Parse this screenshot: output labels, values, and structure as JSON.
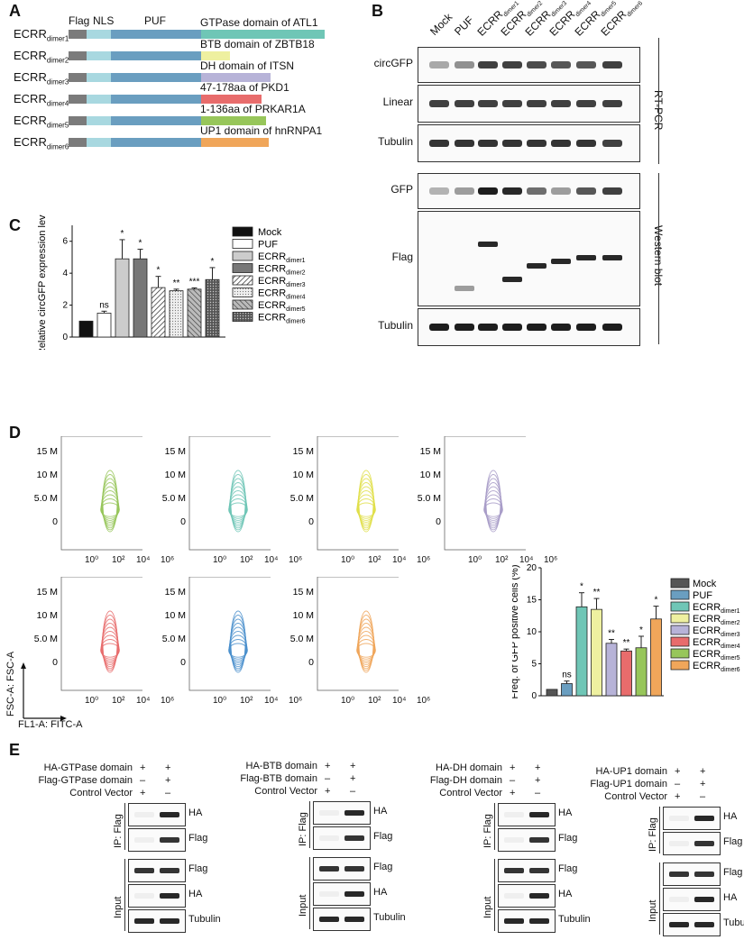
{
  "panels": {
    "A": "A",
    "B": "B",
    "C": "C",
    "D": "D",
    "E": "E"
  },
  "panelA": {
    "header": {
      "flag": "Flag",
      "nls": "NLS",
      "puf": "PUF"
    },
    "constructs": [
      {
        "base": "ECRR",
        "sub": "dimer1",
        "domain": "GTPase domain of ATL1",
        "color": "#6fc6b6"
      },
      {
        "base": "ECRR",
        "sub": "dimer2",
        "domain": "BTB domain of ZBTB18",
        "color": "#eef0a0"
      },
      {
        "base": "ECRR",
        "sub": "dimer3",
        "domain": "DH domain of ITSN",
        "color": "#b7b3d8"
      },
      {
        "base": "ECRR",
        "sub": "dimer4",
        "domain": "47-178aa of PKD1",
        "color": "#e86c6c"
      },
      {
        "base": "ECRR",
        "sub": "dimer5",
        "domain": "1-136aa of PRKAR1A",
        "color": "#97c65a"
      },
      {
        "base": "ECRR",
        "sub": "dimer6",
        "domain": "UP1 domain of hnRNPA1",
        "color": "#f0a65a"
      }
    ],
    "colors": {
      "flag": "#7b7b7b",
      "nls": "#a8d8e0",
      "puf": "#6a9ec0"
    }
  },
  "panelB": {
    "lanes": [
      {
        "base": "Mock",
        "sub": ""
      },
      {
        "base": "PUF",
        "sub": ""
      },
      {
        "base": "ECRR",
        "sub": "dimer1"
      },
      {
        "base": "ECRR",
        "sub": "dimer2"
      },
      {
        "base": "ECRR",
        "sub": "dimer3"
      },
      {
        "base": "ECRR",
        "sub": "dimer4"
      },
      {
        "base": "ECRR",
        "sub": "dimer5"
      },
      {
        "base": "ECRR",
        "sub": "dimer6"
      }
    ],
    "rows": {
      "circgfp": "circGFP",
      "linear": "Linear",
      "tubulin1": "Tubulin",
      "gfp": "GFP",
      "flag": "Flag",
      "tubulin2": "Tubulin"
    },
    "side": {
      "rtpcr": "RT-PCR",
      "western": "Western blot"
    }
  },
  "chart_data": [
    {
      "type": "bar",
      "panel": "C",
      "ylabel": "Relative circGFP expression level",
      "ylim": [
        0,
        7
      ],
      "yticks": [
        "0",
        "2",
        "4",
        "6"
      ],
      "categories": [
        "Mock",
        "PUF",
        "ECRR dimer1",
        "ECRR dimer2",
        "ECRR dimer3",
        "ECRR dimer4",
        "ECRR dimer5",
        "ECRR dimer6"
      ],
      "values": [
        1.0,
        1.5,
        4.9,
        4.9,
        3.1,
        2.9,
        3.0,
        3.6
      ],
      "errors": [
        0,
        0.12,
        1.2,
        0.6,
        0.7,
        0.1,
        0.08,
        0.75
      ],
      "significance": [
        "",
        "ns",
        "*",
        "*",
        "*",
        "**",
        "***",
        "*"
      ],
      "legend": [
        {
          "base": "Mock",
          "sub": ""
        },
        {
          "base": "PUF",
          "sub": ""
        },
        {
          "base": "ECRR",
          "sub": "dimer1"
        },
        {
          "base": "ECRR",
          "sub": "dimer2"
        },
        {
          "base": "ECRR",
          "sub": "dimer3"
        },
        {
          "base": "ECRR",
          "sub": "dimer4"
        },
        {
          "base": "ECRR",
          "sub": "dimer5"
        },
        {
          "base": "ECRR",
          "sub": "dimer6"
        }
      ],
      "legend_position": "right"
    },
    {
      "type": "bar",
      "panel": "D",
      "ylabel": "Freq. of GFP positive cells (%)",
      "ylim": [
        0,
        20
      ],
      "yticks": [
        "0",
        "5",
        "10",
        "15",
        "20"
      ],
      "categories": [
        "Mock",
        "PUF",
        "ECRR dimer1",
        "ECRR dimer2",
        "ECRR dimer3",
        "ECRR dimer4",
        "ECRR dimer5",
        "ECRR dimer6"
      ],
      "values": [
        1.0,
        1.9,
        13.9,
        13.5,
        8.2,
        7.0,
        7.5,
        12.0
      ],
      "errors": [
        0,
        0.4,
        2.2,
        1.7,
        0.6,
        0.3,
        1.8,
        2.0
      ],
      "significance": [
        "",
        "ns",
        "*",
        "**",
        "**",
        "**",
        "*",
        "*"
      ],
      "colors": [
        "#555555",
        "#6a9ec0",
        "#6fc6b6",
        "#eef0a0",
        "#b7b3d8",
        "#e86c6c",
        "#97c65a",
        "#f0a65a"
      ],
      "legend": [
        {
          "base": "Mock",
          "sub": ""
        },
        {
          "base": "PUF",
          "sub": ""
        },
        {
          "base": "ECRR",
          "sub": "dimer1"
        },
        {
          "base": "ECRR",
          "sub": "dimer2"
        },
        {
          "base": "ECRR",
          "sub": "dimer3"
        },
        {
          "base": "ECRR",
          "sub": "dimer4"
        },
        {
          "base": "ECRR",
          "sub": "dimer5"
        },
        {
          "base": "ECRR",
          "sub": "dimer6"
        }
      ],
      "legend_position": "right"
    }
  ],
  "flow": {
    "yticks": [
      "15 M",
      "10 M",
      "5.0 M",
      "0"
    ],
    "xticks": [
      "10⁰",
      "10²",
      "10⁴",
      "10⁶"
    ],
    "ylabel": "FSC-A: FSC-A",
    "xlabel": "FL1-A: FITC-A",
    "plots": [
      {
        "color": "#97c65a"
      },
      {
        "color": "#6fc6b6"
      },
      {
        "color": "#e0df4a"
      },
      {
        "color": "#a89cc8"
      },
      {
        "color": "#e86c6c"
      },
      {
        "color": "#4a8fcc"
      },
      {
        "color": "#f0a65a"
      }
    ]
  },
  "panelE": [
    {
      "rows": [
        "HA-GTPase domain",
        "Flag-GTPase domain",
        "Control Vector"
      ],
      "signs": [
        [
          "+",
          "+"
        ],
        [
          "–",
          "+"
        ],
        [
          "+",
          "–"
        ]
      ],
      "ip": "IP: Flag",
      "input": "Input",
      "labels": [
        "HA",
        "Flag",
        "Flag",
        "HA",
        "Tubulin"
      ]
    },
    {
      "rows": [
        "HA-BTB domain",
        "Flag-BTB domain",
        "Control Vector"
      ],
      "signs": [
        [
          "+",
          "+"
        ],
        [
          "–",
          "+"
        ],
        [
          "+",
          "–"
        ]
      ],
      "ip": "IP: Flag",
      "input": "Input",
      "labels": [
        "HA",
        "Flag",
        "Flag",
        "HA",
        "Tubulin"
      ]
    },
    {
      "rows": [
        "HA-DH domain",
        "Flag-DH domain",
        "Control Vector"
      ],
      "signs": [
        [
          "+",
          "+"
        ],
        [
          "–",
          "+"
        ],
        [
          "+",
          "–"
        ]
      ],
      "ip": "IP: Flag",
      "input": "Input",
      "labels": [
        "HA",
        "Flag",
        "Flag",
        "HA",
        "Tubulin"
      ]
    },
    {
      "rows": [
        "HA-UP1 domain",
        "Flag-UP1 domain",
        "Control Vector"
      ],
      "signs": [
        [
          "+",
          "+"
        ],
        [
          "–",
          "+"
        ],
        [
          "+",
          "–"
        ]
      ],
      "ip": "IP: Flag",
      "input": "Input",
      "labels": [
        "HA",
        "Flag",
        "Flag",
        "HA",
        "Tubulin"
      ]
    }
  ]
}
